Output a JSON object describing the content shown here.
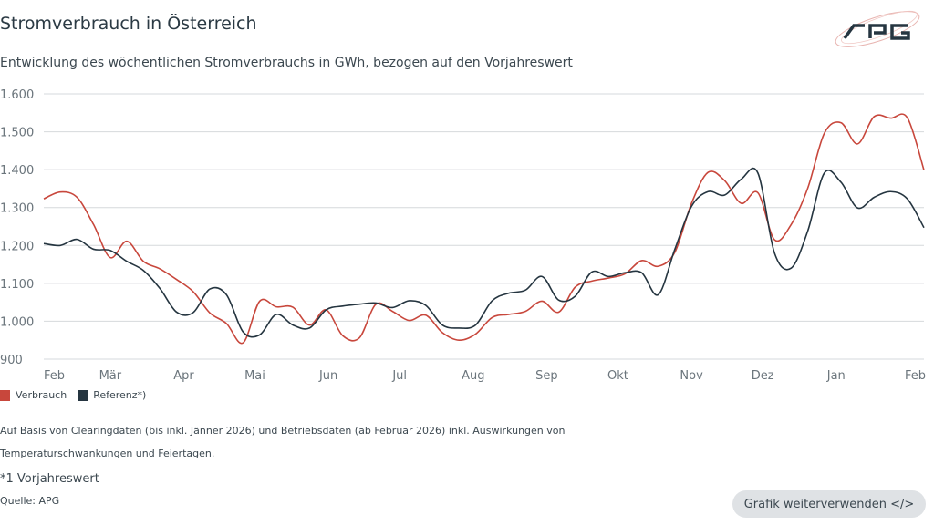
{
  "header": {
    "title": "Stromverbrauch in Österreich",
    "subtitle": "Entwicklung des wöchentlichen Stromverbrauchs in GWh, bezogen auf den Vorjahreswert",
    "logo_text": "APG"
  },
  "footer": {
    "note_line1": "Auf Basis von Clearingdaten (bis inkl. Jänner 2026) und Betriebsdaten (ab Februar  2026) inkl. Auswirkungen von",
    "note_line2": "Temperaturschwankungen und Feiertagen.",
    "footnote": "*1 Vorjahreswert",
    "source": "Quelle: APG",
    "reuse_button": "Grafik weiterverwenden </>"
  },
  "chart_data": {
    "type": "line",
    "title": "Stromverbrauch in Österreich",
    "subtitle": "Entwicklung des wöchentlichen Stromverbrauchs in GWh, bezogen auf den Vorjahreswert",
    "xlabel": "",
    "ylabel": "",
    "ylim": [
      900,
      1600
    ],
    "yticks": [
      "900",
      "1.000",
      "1.100",
      "1.200",
      "1.300",
      "1.400",
      "1.500",
      "1.600"
    ],
    "ytick_values": [
      900,
      1000,
      1100,
      1200,
      1300,
      1400,
      1500,
      1600
    ],
    "xlim": [
      "2025-02-01",
      "2026-02-07"
    ],
    "xticks": [
      "Feb",
      "Mär",
      "Apr",
      "Mai",
      "Jun",
      "Jul",
      "Aug",
      "Sep",
      "Okt",
      "Nov",
      "Dez",
      "Jan",
      "Feb"
    ],
    "xtick_dates": [
      "2025-02-01",
      "2025-03-01",
      "2025-04-01",
      "2025-05-01",
      "2025-06-01",
      "2025-07-01",
      "2025-08-01",
      "2025-09-01",
      "2025-10-01",
      "2025-11-01",
      "2025-12-01",
      "2026-01-01",
      "2026-02-01"
    ],
    "grid": true,
    "legend_position": "bottom-left",
    "x": [
      "2025-02-01",
      "2025-02-08",
      "2025-02-15",
      "2025-02-22",
      "2025-03-01",
      "2025-03-08",
      "2025-03-15",
      "2025-03-22",
      "2025-03-29",
      "2025-04-05",
      "2025-04-12",
      "2025-04-19",
      "2025-04-26",
      "2025-05-03",
      "2025-05-10",
      "2025-05-17",
      "2025-05-24",
      "2025-05-31",
      "2025-06-07",
      "2025-06-14",
      "2025-06-21",
      "2025-06-28",
      "2025-07-05",
      "2025-07-12",
      "2025-07-19",
      "2025-07-26",
      "2025-08-02",
      "2025-08-09",
      "2025-08-16",
      "2025-08-23",
      "2025-08-30",
      "2025-09-06",
      "2025-09-13",
      "2025-09-20",
      "2025-09-27",
      "2025-10-04",
      "2025-10-11",
      "2025-10-18",
      "2025-10-25",
      "2025-11-01",
      "2025-11-08",
      "2025-11-15",
      "2025-11-22",
      "2025-11-29",
      "2025-12-06",
      "2025-12-13",
      "2025-12-20",
      "2025-12-27",
      "2026-01-03",
      "2026-01-10",
      "2026-01-17",
      "2026-01-24",
      "2026-01-31",
      "2026-02-07"
    ],
    "series": [
      {
        "name": "Verbrauch",
        "color": "#c8473c",
        "values": [
          1323,
          1341,
          1327,
          1255,
          1168,
          1211,
          1158,
          1138,
          1110,
          1078,
          1022,
          994,
          943,
          1053,
          1038,
          1037,
          990,
          1030,
          962,
          956,
          1045,
          1026,
          1002,
          1016,
          970,
          950,
          966,
          1010,
          1018,
          1026,
          1053,
          1024,
          1090,
          1106,
          1114,
          1125,
          1160,
          1145,
          1182,
          1311,
          1393,
          1371,
          1311,
          1339,
          1215,
          1255,
          1351,
          1496,
          1524,
          1468,
          1540,
          1536,
          1537,
          1399
        ]
      },
      {
        "name": "Referenz*)",
        "color": "#253540",
        "values": [
          1205,
          1200,
          1216,
          1190,
          1187,
          1158,
          1134,
          1086,
          1024,
          1023,
          1085,
          1070,
          972,
          964,
          1018,
          990,
          982,
          1030,
          1040,
          1045,
          1048,
          1036,
          1054,
          1042,
          990,
          982,
          990,
          1054,
          1074,
          1082,
          1118,
          1056,
          1066,
          1130,
          1118,
          1128,
          1128,
          1070,
          1190,
          1303,
          1342,
          1333,
          1375,
          1391,
          1180,
          1140,
          1238,
          1391,
          1367,
          1299,
          1327,
          1342,
          1323,
          1247
        ]
      }
    ]
  }
}
